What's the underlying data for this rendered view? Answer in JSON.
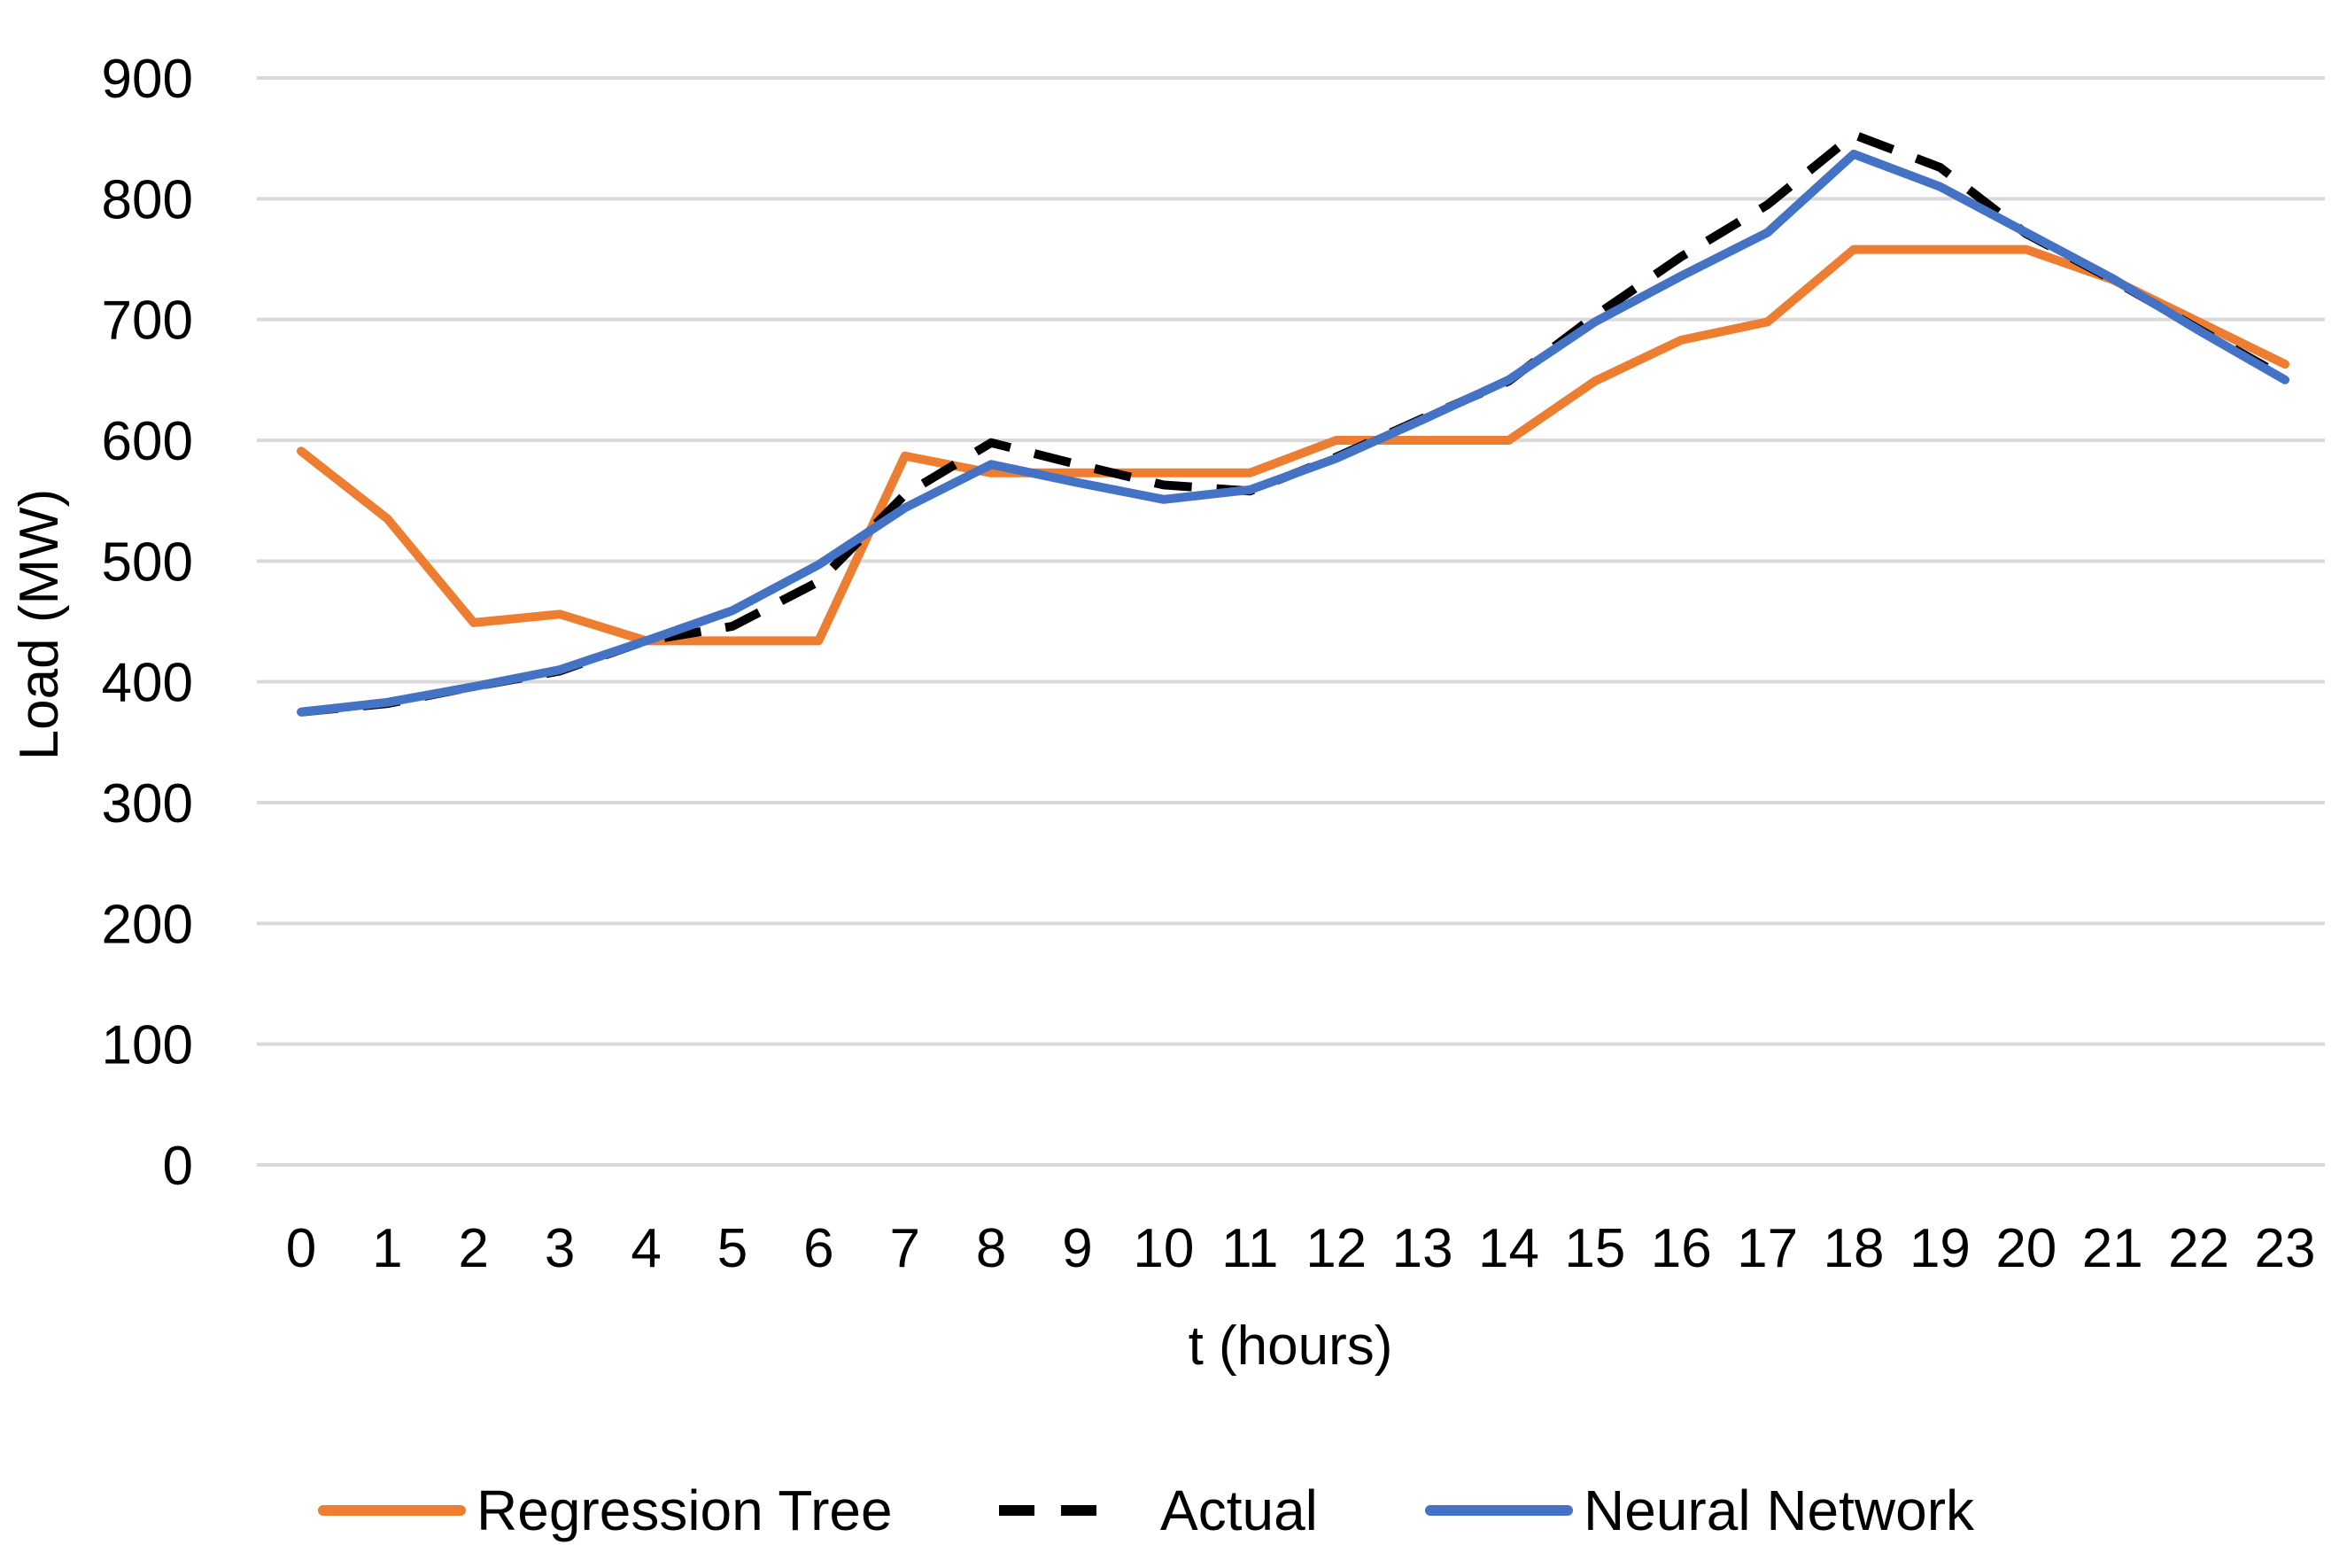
{
  "chart_data": {
    "type": "line",
    "title": "",
    "xlabel": "t (hours)",
    "ylabel": "Load (MW)",
    "ylim": [
      0,
      900
    ],
    "yticks": [
      "0",
      "100",
      "200",
      "300",
      "400",
      "500",
      "600",
      "700",
      "800",
      "900"
    ],
    "x": [
      "0",
      "1",
      "2",
      "3",
      "4",
      "5",
      "6",
      "7",
      "8",
      "9",
      "10",
      "11",
      "12",
      "13",
      "14",
      "15",
      "16",
      "17",
      "18",
      "19",
      "20",
      "21",
      "22",
      "23"
    ],
    "grid": "horizontal",
    "legend_position": "bottom",
    "series": [
      {
        "name": "Regression Tree",
        "color": "#ED7D31",
        "dash": "solid",
        "values": [
          591,
          535,
          449,
          456,
          434,
          434,
          434,
          587,
          573,
          573,
          573,
          573,
          600,
          600,
          600,
          649,
          683,
          698,
          758,
          758,
          758,
          733,
          698,
          663
        ]
      },
      {
        "name": "Actual",
        "color": "#000000",
        "dash": "dashed",
        "values": [
          375,
          382,
          396,
          409,
          434,
          446,
          483,
          555,
          598,
          580,
          563,
          558,
          586,
          618,
          649,
          703,
          752,
          795,
          853,
          826,
          771,
          733,
          692,
          652
        ]
      },
      {
        "name": "Neural Network",
        "color": "#4472C4",
        "dash": "solid",
        "values": [
          375,
          383,
          396,
          410,
          434,
          459,
          497,
          544,
          580,
          565,
          551,
          559,
          585,
          617,
          650,
          698,
          736,
          772,
          837,
          810,
          772,
          734,
          691,
          650
        ]
      }
    ]
  }
}
